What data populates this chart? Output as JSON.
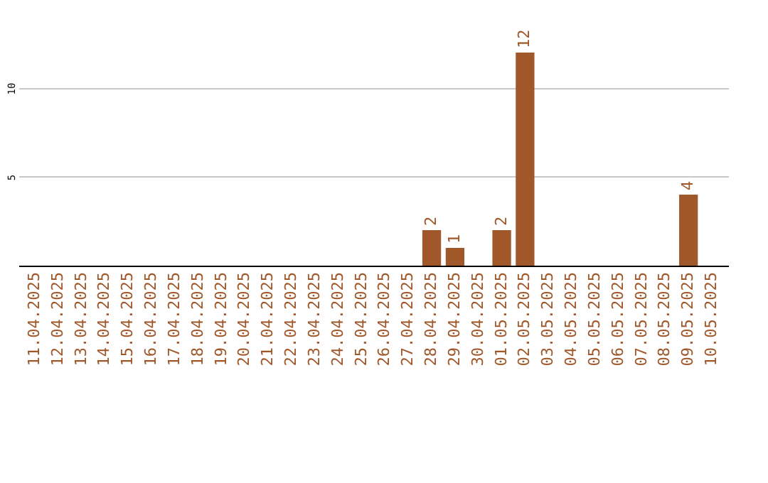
{
  "chart_data": {
    "type": "bar",
    "categories": [
      "11.04.2025",
      "12.04.2025",
      "13.04.2025",
      "14.04.2025",
      "15.04.2025",
      "16.04.2025",
      "17.04.2025",
      "18.04.2025",
      "19.04.2025",
      "20.04.2025",
      "21.04.2025",
      "22.04.2025",
      "23.04.2025",
      "24.04.2025",
      "25.04.2025",
      "26.04.2025",
      "27.04.2025",
      "28.04.2025",
      "29.04.2025",
      "30.04.2025",
      "01.05.2025",
      "02.05.2025",
      "03.05.2025",
      "04.05.2025",
      "05.05.2025",
      "06.05.2025",
      "07.05.2025",
      "08.05.2025",
      "09.05.2025",
      "10.05.2025"
    ],
    "values": [
      0,
      0,
      0,
      0,
      0,
      0,
      0,
      0,
      0,
      0,
      0,
      0,
      0,
      0,
      0,
      0,
      0,
      2,
      1,
      0,
      2,
      12,
      0,
      0,
      0,
      0,
      0,
      0,
      4,
      0
    ],
    "value_labels": [
      null,
      null,
      null,
      null,
      null,
      null,
      null,
      null,
      null,
      null,
      null,
      null,
      null,
      null,
      null,
      null,
      null,
      "2",
      "1",
      null,
      "2",
      "12",
      null,
      null,
      null,
      null,
      null,
      null,
      "4",
      null
    ],
    "color": "#a0582a",
    "ylim": [
      0,
      12
    ],
    "yticks": [
      5,
      10
    ],
    "grid": "y"
  }
}
